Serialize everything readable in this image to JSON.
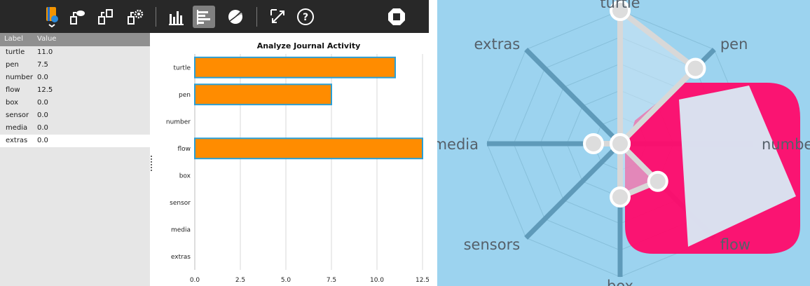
{
  "toolbar": {
    "buttons": [
      {
        "name": "journal-activity-icon",
        "active": false
      },
      {
        "name": "share-icon",
        "active": false
      },
      {
        "name": "share-chat-icon",
        "active": false
      },
      {
        "name": "share-settings-icon",
        "active": false
      },
      {
        "name": "vertical-bars-icon",
        "active": false
      },
      {
        "name": "horizontal-bars-icon",
        "active": true
      },
      {
        "name": "pie-chart-icon",
        "active": false
      },
      {
        "name": "fullscreen-icon",
        "active": false
      },
      {
        "name": "help-icon",
        "active": false
      },
      {
        "name": "stop-icon",
        "active": false
      }
    ]
  },
  "table": {
    "header_label": "Label",
    "header_value": "Value",
    "rows": [
      {
        "label": "turtle",
        "value": "11.0"
      },
      {
        "label": "pen",
        "value": "7.5"
      },
      {
        "label": "number",
        "value": "0.0"
      },
      {
        "label": "flow",
        "value": "12.5"
      },
      {
        "label": "box",
        "value": "0.0"
      },
      {
        "label": "sensor",
        "value": "0.0"
      },
      {
        "label": "media",
        "value": "0.0"
      },
      {
        "label": "extras",
        "value": "0.0"
      }
    ],
    "selected_row": 7
  },
  "chart_data": [
    {
      "type": "bar",
      "orientation": "horizontal",
      "title": "Analyze Journal Activity",
      "categories": [
        "turtle",
        "pen",
        "number",
        "flow",
        "box",
        "sensor",
        "media",
        "extras"
      ],
      "values": [
        11.0,
        7.5,
        0.0,
        12.5,
        0.0,
        0.0,
        0.0,
        0.0
      ],
      "xticks": [
        "0.0",
        "2.5",
        "5.0",
        "7.5",
        "10.0",
        "12.5"
      ],
      "xlim": [
        0,
        12.5
      ],
      "bar_color": "#ff8c00",
      "bar_edge_color": "#2a9fd6",
      "grid": "vertical"
    },
    {
      "type": "radar",
      "axes": [
        "turtle",
        "pen",
        "number",
        "flow",
        "box",
        "sensors",
        "media",
        "extras"
      ],
      "points_on_chart": [
        5,
        4,
        0,
        2,
        2,
        0,
        1,
        0
      ],
      "scale_max": 5,
      "background_color": "#9cd3ef",
      "fill_color": "#ff0a6a",
      "highlight_color": "#d8eaf4"
    }
  ],
  "colors": {
    "toolbar_bg": "#282828",
    "table_bg": "#e6e6e6",
    "table_header_bg": "#909090",
    "radar_bg": "#9cd3ef",
    "radar_fill": "#ff0a6a"
  }
}
